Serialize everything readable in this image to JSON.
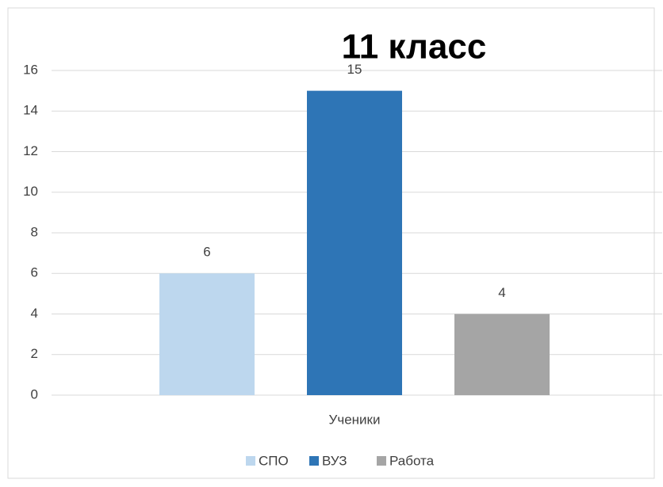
{
  "chart_data": {
    "type": "bar",
    "title": "11 класс",
    "categories": [
      "Ученики"
    ],
    "series": [
      {
        "name": "СПО",
        "color": "#bdd7ee",
        "values": [
          6
        ]
      },
      {
        "name": "ВУЗ",
        "color": "#2e75b6",
        "values": [
          15
        ]
      },
      {
        "name": "Работа",
        "color": "#a5a5a5",
        "values": [
          4
        ]
      }
    ],
    "ylim": [
      0,
      16
    ],
    "yticks": [
      0,
      2,
      4,
      6,
      8,
      10,
      12,
      14,
      16
    ],
    "grid": true,
    "legend": "bottom"
  }
}
